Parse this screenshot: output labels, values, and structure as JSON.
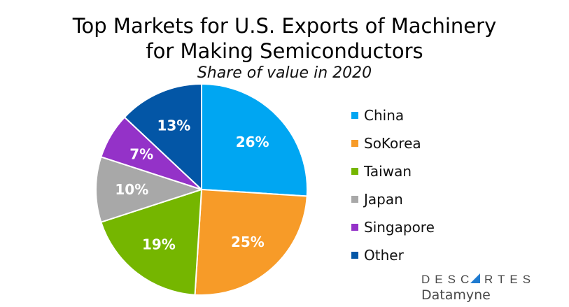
{
  "chart_data": {
    "type": "pie",
    "title": "Top Markets for U.S. Exports of Machinery for Making Semiconductors",
    "title_lines": [
      "Top Markets for U.S. Exports of Machinery",
      "for Making Semiconductors"
    ],
    "subtitle": "Share of value in 2020",
    "categories": [
      "China",
      "SoKorea",
      "Taiwan",
      "Japan",
      "Singapore",
      "Other"
    ],
    "values": [
      26,
      25,
      19,
      10,
      7,
      13
    ],
    "labels": [
      "26%",
      "25%",
      "19%",
      "10%",
      "7%",
      "13%"
    ],
    "colors": [
      "#00A6F2",
      "#F79B28",
      "#75B600",
      "#A8A8A8",
      "#9432C8",
      "#0356A6"
    ],
    "unit": "%",
    "start_angle": "top, clockwise",
    "legend_position": "right"
  },
  "logo": {
    "line1": "DESCARTES",
    "line2": "Datamyne",
    "accent": "#1F7BD0"
  }
}
